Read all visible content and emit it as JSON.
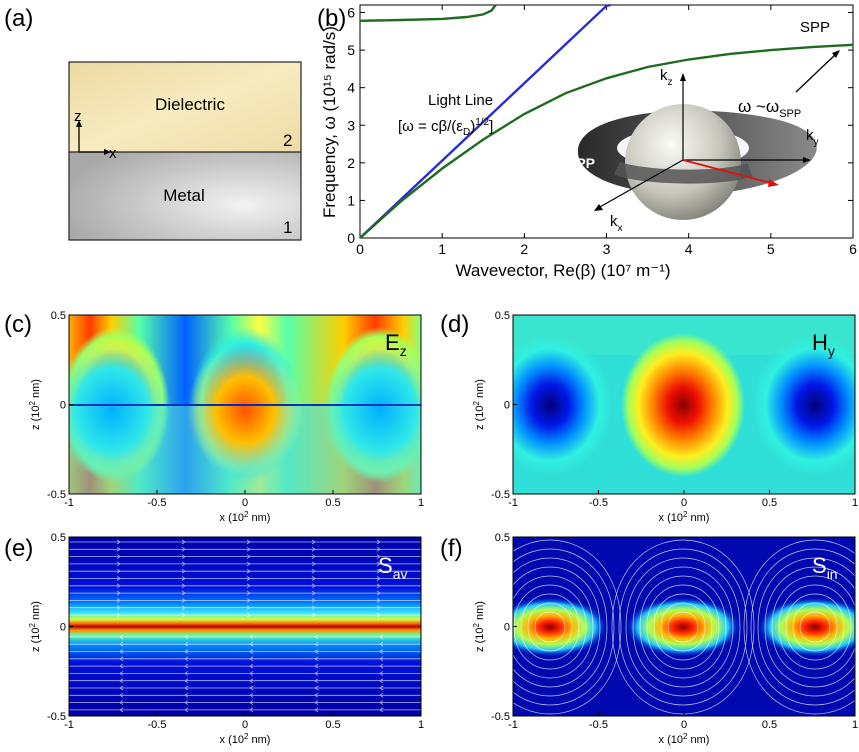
{
  "panel_labels": {
    "a": "(a)",
    "b": "(b)",
    "c": "(c)",
    "d": "(d)",
    "e": "(e)",
    "f": "(f)"
  },
  "panel_a": {
    "upper_medium": "Dielectric",
    "lower_medium": "Metal",
    "upper_index": "2",
    "lower_index": "1",
    "axis_z": "z",
    "axis_x": "x",
    "colors": {
      "dielectric": "#f3e4ae",
      "metal": "#c9c9c9"
    }
  },
  "panel_b": {
    "xlabel": "Wavevector, Re(β) (10⁷ m⁻¹)",
    "ylabel": "Frequency, ω (10¹⁵ rad/s)",
    "light_line_label_1": "Light Line",
    "light_line_label_2": "[ω = cβ/(ε",
    "light_line_label_sub": "D",
    "light_line_label_3": ")",
    "light_line_label_sup": "1/2",
    "light_line_label_4": "]",
    "spp_label": "SPP",
    "omega_label": "ω ~ω",
    "omega_sub": "SPP",
    "inset": {
      "sphere_label": "SPP",
      "kz": "k",
      "kz_sub": "z",
      "ky": "k",
      "ky_sub": "y",
      "kx": "k",
      "kx_sub": "x"
    }
  },
  "field_panels": {
    "xlabel": "x (10",
    "xlabel_sup": "2",
    "xlabel_end": " nm)",
    "ylabel": "z (10",
    "ylabel_sup": "2",
    "ylabel_end": " nm)",
    "xticks": [
      "-1",
      "-0.5",
      "0",
      "0.5",
      "1"
    ],
    "yticks": [
      "0.5",
      "0",
      "-0.5"
    ],
    "c_label": "E",
    "c_sub": "z",
    "d_label": "H",
    "d_sub": "y",
    "e_label": "S",
    "e_sub": "av",
    "f_label": "S",
    "f_sub": "in"
  },
  "chart_data": [
    {
      "type": "line",
      "title": "",
      "xlabel": "Wavevector, Re(β) (10⁷ m⁻¹)",
      "ylabel": "Frequency, ω (10¹⁵ rad/s)",
      "xlim": [
        0,
        6
      ],
      "ylim": [
        0,
        6.2
      ],
      "xticks": [
        0,
        1,
        2,
        3,
        4,
        5,
        6
      ],
      "yticks": [
        0,
        1,
        2,
        3,
        4,
        5,
        6
      ],
      "grid": false,
      "series": [
        {
          "name": "Light Line",
          "color": "#2b2bd6",
          "x": [
            0,
            0.5,
            1,
            1.5,
            2,
            2.5,
            3,
            3.05
          ],
          "y": [
            0,
            1.03,
            2.06,
            3.09,
            4.12,
            5.15,
            6.18,
            6.2
          ]
        },
        {
          "name": "SPP",
          "color": "#1f6b1f",
          "x": [
            0,
            0.5,
            1,
            1.5,
            2,
            2.5,
            3,
            3.5,
            4,
            4.5,
            5,
            5.5,
            6
          ],
          "y": [
            0,
            0.98,
            1.85,
            2.62,
            3.3,
            3.85,
            4.25,
            4.55,
            4.75,
            4.9,
            5.0,
            5.08,
            5.14
          ]
        },
        {
          "name": "",
          "color": "#1f6b1f",
          "x": [
            0,
            0.5,
            1,
            1.3,
            1.5,
            1.6,
            1.65
          ],
          "y": [
            5.78,
            5.8,
            5.83,
            5.88,
            5.95,
            6.05,
            6.2
          ]
        }
      ]
    }
  ]
}
